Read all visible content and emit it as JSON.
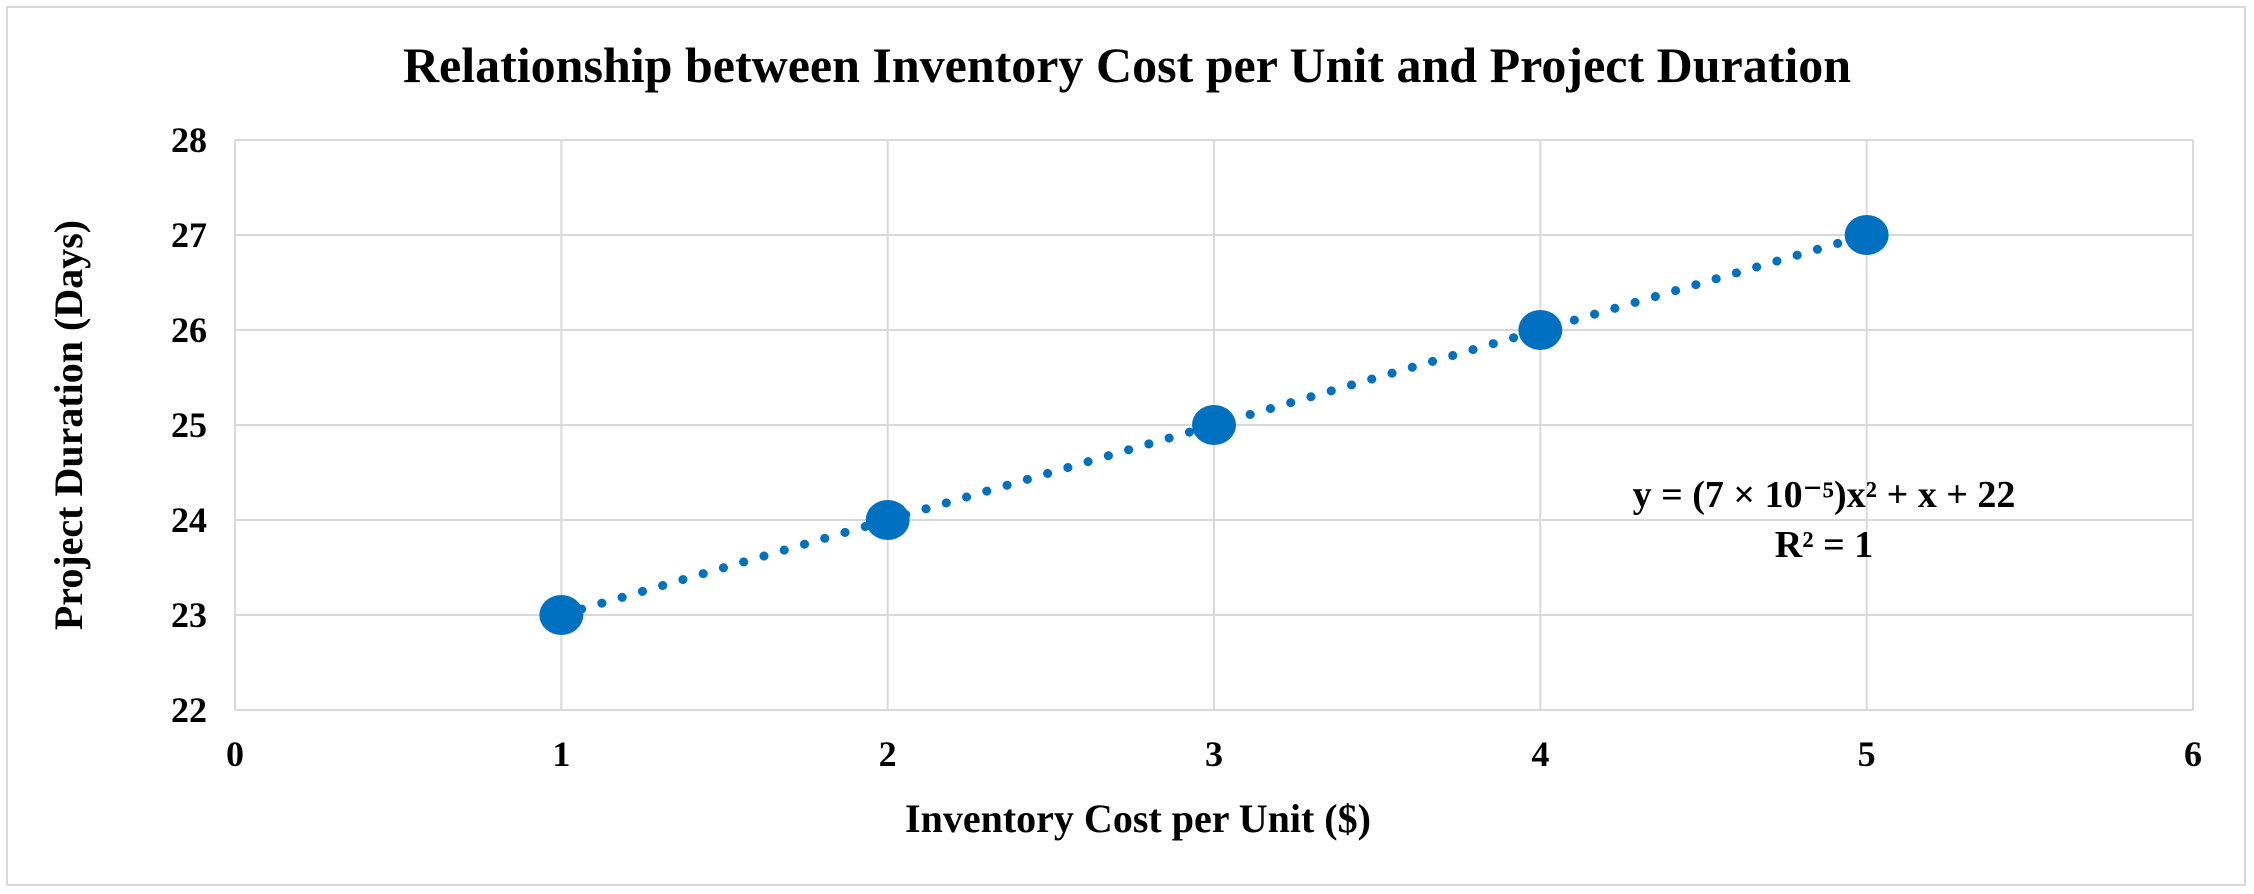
{
  "chart_data": {
    "type": "scatter",
    "title": "Relationship between Inventory Cost per Unit and Project Duration",
    "xlabel": "Inventory Cost per Unit ($)",
    "ylabel": "Project Duration (Days)",
    "xlim": [
      0,
      6
    ],
    "ylim": [
      22,
      28
    ],
    "x_ticks": [
      "0",
      "1",
      "2",
      "3",
      "4",
      "5",
      "6"
    ],
    "y_ticks": [
      "22",
      "23",
      "24",
      "25",
      "26",
      "27",
      "28"
    ],
    "grid": true,
    "legend": "none",
    "series": [
      {
        "x": [
          1,
          2,
          3,
          4,
          5
        ],
        "y": [
          23,
          24,
          25,
          26,
          27
        ],
        "color": "#0070C0"
      }
    ],
    "trendline": {
      "type": "polynomial",
      "style": "dotted",
      "color": "#0070C0",
      "equation": "y = (7 × 10⁻⁵)x² + x + 22",
      "r_squared": "R² = 1"
    }
  },
  "colors": {
    "marker": "#0070C0",
    "grid": "#d9d9d9",
    "border": "#d9d9d9"
  }
}
